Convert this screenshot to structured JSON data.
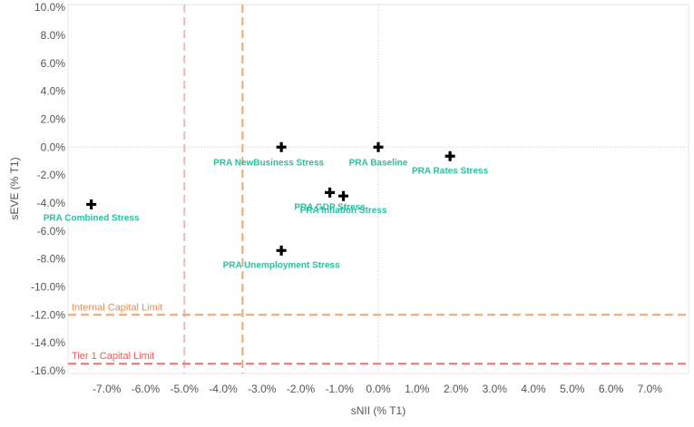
{
  "chart_data": {
    "type": "scatter",
    "title": "",
    "xlabel": "sNII (% T1)",
    "ylabel": "sEVE (% T1)",
    "xlim": [
      -8.0,
      8.0
    ],
    "ylim": [
      -16.2,
      10.2
    ],
    "xticks": [
      -7,
      -6,
      -5,
      -4,
      -3,
      -2,
      -1,
      0,
      1,
      2,
      3,
      4,
      5,
      6,
      7
    ],
    "xtick_labels": [
      "-7.0%",
      "-6.0%",
      "-5.0%",
      "-4.0%",
      "-3.0%",
      "-2.0%",
      "-1.0%",
      "0.0%",
      "1.0%",
      "2.0%",
      "3.0%",
      "4.0%",
      "5.0%",
      "6.0%",
      "7.0%"
    ],
    "yticks": [
      10,
      8,
      6,
      4,
      2,
      0,
      -2,
      -4,
      -6,
      -8,
      -10,
      -12,
      -14,
      -16
    ],
    "ytick_labels": [
      "10.0%",
      "8.0%",
      "6.0%",
      "4.0%",
      "2.0%",
      "0.0%",
      "-2.0%",
      "-4.0%",
      "-6.0%",
      "-8.0%",
      "-10.0%",
      "-12.0%",
      "-14.0%",
      "-16.0%"
    ],
    "points": [
      {
        "label": "PRA Combined Stress",
        "x": -7.4,
        "y": -4.1
      },
      {
        "label": "PRA NewBusiness Stress",
        "x": -2.5,
        "y": 0.0
      },
      {
        "label": "PRA Baseline",
        "x": 0.0,
        "y": 0.0
      },
      {
        "label": "PRA Rates Stress",
        "x": 1.85,
        "y": -0.65
      },
      {
        "label": "PRA GDP Stress",
        "x": -1.25,
        "y": -3.25
      },
      {
        "label": "PRA Inflation Stress",
        "x": -0.9,
        "y": -3.5
      },
      {
        "label": "PRA Unemployment Stress",
        "x": -2.5,
        "y": -7.4
      }
    ],
    "reference_lines": [
      {
        "label": "",
        "orientation": "vertical",
        "value": -5.0,
        "color": "#f4b9b6",
        "dashed": true
      },
      {
        "label": "",
        "orientation": "vertical",
        "value": -3.5,
        "color": "#f7a26a",
        "dashed": true
      },
      {
        "label": "",
        "orientation": "vertical",
        "value": 0.0,
        "color": "#c8c8c8",
        "dashed": false,
        "dotted": true
      },
      {
        "label": "",
        "orientation": "horizontal",
        "value": 0.0,
        "color": "#c8c8c8",
        "dashed": false,
        "dotted": true
      },
      {
        "label": "Internal Capital Limit",
        "orientation": "horizontal",
        "value": -12.0,
        "color": "#f7a26a",
        "dashed": true
      },
      {
        "label": "Tier 1 Capital Limit",
        "orientation": "horizontal",
        "value": -15.5,
        "color": "#ee6f6f",
        "dashed": true
      }
    ],
    "colors": {
      "point": "#000000",
      "point_label": "#2bbfa0",
      "internal_label": "#f08a4b",
      "tier1_label": "#e85a5a",
      "tick": "#555555",
      "frame": "#e6e6e6"
    }
  }
}
